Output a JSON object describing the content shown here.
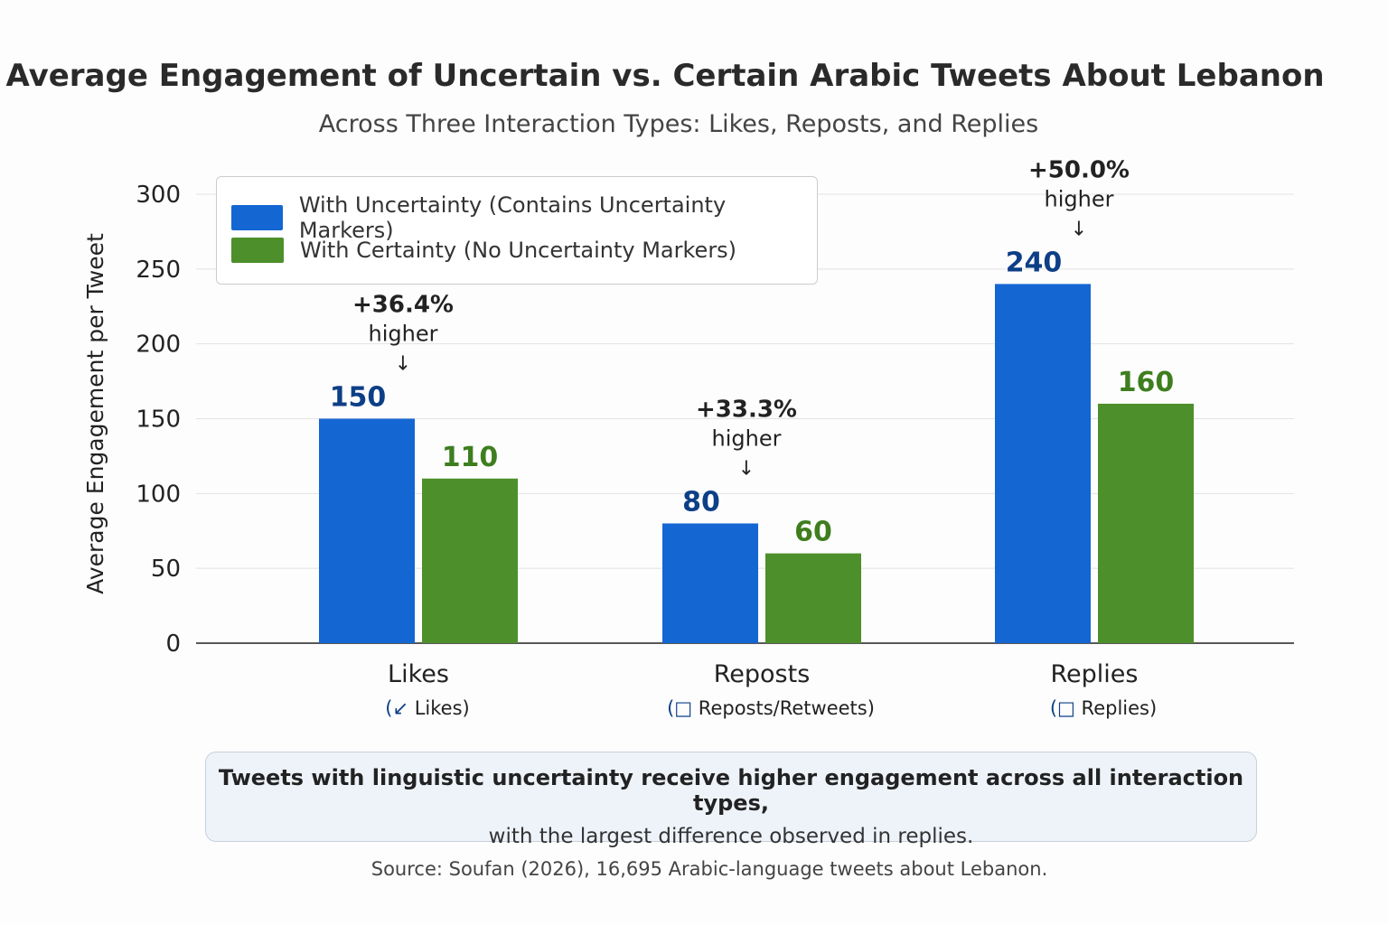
{
  "title": "Average Engagement of Uncertain vs. Certain Arabic Tweets About Lebanon",
  "subtitle": "Across Three Interaction Types: Likes, Reposts, and Replies",
  "colors": {
    "uncertain": "#1466d2",
    "certain": "#4d8f2b",
    "uncertain_label": "#0d3f86",
    "certain_label": "#3e7e1f"
  },
  "legend": {
    "uncertain": "With Uncertainty (Contains Uncertainty Markers)",
    "certain": "With Certainty (No Uncertainty Markers)"
  },
  "chart_data": {
    "type": "bar",
    "ylabel": "Average Engagement per Tweet",
    "xlabel": "",
    "ylim": [
      0,
      300
    ],
    "yticks": [
      "0",
      "50",
      "100",
      "150",
      "200",
      "250",
      "300"
    ],
    "grid": true,
    "legend_position": "top-left",
    "categories": [
      "Likes",
      "Reposts",
      "Replies"
    ],
    "category_sublabels": [
      "Likes)",
      "Reposts/Retweets)",
      "Replies)"
    ],
    "category_icons": [
      "like-arrow-icon",
      "repost-icon",
      "reply-bubble-icon"
    ],
    "series": [
      {
        "name": "With Uncertainty (Contains Uncertainty Markers)",
        "values": [
          150,
          80,
          240
        ]
      },
      {
        "name": "With Certainty (No Uncertainty Markers)",
        "values": [
          110,
          60,
          160
        ]
      }
    ],
    "value_labels": [
      [
        "150",
        "80",
        "240"
      ],
      [
        "110",
        "60",
        "160"
      ]
    ],
    "annotations": [
      {
        "pct": "+36.4%",
        "text": "higher"
      },
      {
        "pct": "+33.3%",
        "text": "higher"
      },
      {
        "pct": "+50.0%",
        "text": "higher"
      }
    ]
  },
  "note": {
    "line1": "Tweets with linguistic uncertainty receive higher engagement across all interaction types,",
    "line2": "with the largest difference observed in replies."
  },
  "source": "Source: Soufan (2026), 16,695 Arabic-language tweets about Lebanon."
}
